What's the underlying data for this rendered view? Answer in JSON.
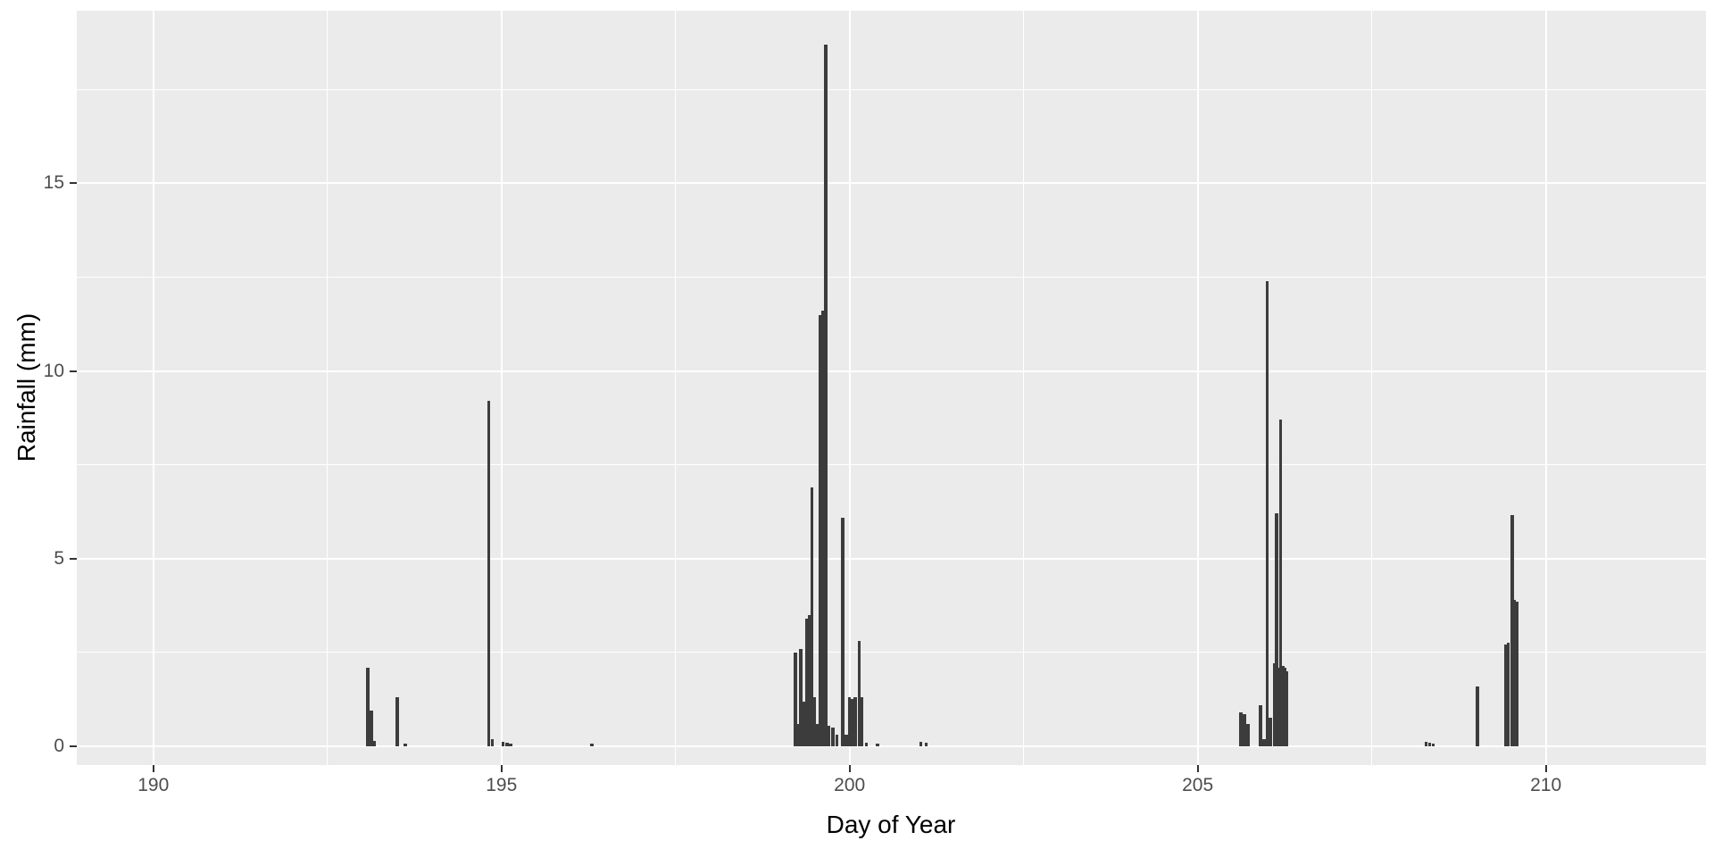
{
  "chart_data": {
    "type": "bar",
    "title": "",
    "xlabel": "Day of Year",
    "ylabel": "Rainfall (mm)",
    "xlim": [
      188.9,
      212.3
    ],
    "ylim": [
      -0.5,
      19.6
    ],
    "x_ticks": [
      190,
      195,
      200,
      205,
      210
    ],
    "y_ticks": [
      0,
      5,
      10,
      15
    ],
    "x_minor_ticks": [
      192.5,
      197.5,
      202.5,
      207.5
    ],
    "y_minor_ticks": [
      2.5,
      7.5,
      12.5,
      17.5
    ],
    "grid": true,
    "legend_position": "none",
    "panel_bg": "#EBEBEB",
    "grid_color": "#FFFFFF",
    "bar_color": "#3C3C3C",
    "tick_label_color": "#4D4D4D",
    "bars": [
      {
        "x": 193.08,
        "y": 2.1
      },
      {
        "x": 193.13,
        "y": 0.95
      },
      {
        "x": 193.17,
        "y": 0.15
      },
      {
        "x": 193.5,
        "y": 1.3
      },
      {
        "x": 193.62,
        "y": 0.08
      },
      {
        "x": 194.82,
        "y": 9.2
      },
      {
        "x": 194.87,
        "y": 0.2
      },
      {
        "x": 195.02,
        "y": 0.12
      },
      {
        "x": 195.08,
        "y": 0.1
      },
      {
        "x": 195.13,
        "y": 0.06
      },
      {
        "x": 196.3,
        "y": 0.08
      },
      {
        "x": 199.22,
        "y": 2.5
      },
      {
        "x": 199.26,
        "y": 0.6
      },
      {
        "x": 199.3,
        "y": 2.6
      },
      {
        "x": 199.34,
        "y": 1.2
      },
      {
        "x": 199.38,
        "y": 3.4
      },
      {
        "x": 199.42,
        "y": 3.5
      },
      {
        "x": 199.46,
        "y": 6.9
      },
      {
        "x": 199.5,
        "y": 1.3
      },
      {
        "x": 199.54,
        "y": 0.6
      },
      {
        "x": 199.58,
        "y": 11.5
      },
      {
        "x": 199.62,
        "y": 11.6
      },
      {
        "x": 199.66,
        "y": 18.7
      },
      {
        "x": 199.7,
        "y": 0.55
      },
      {
        "x": 199.76,
        "y": 0.5
      },
      {
        "x": 199.82,
        "y": 0.3
      },
      {
        "x": 199.9,
        "y": 6.1
      },
      {
        "x": 199.95,
        "y": 0.3
      },
      {
        "x": 200.0,
        "y": 1.3
      },
      {
        "x": 200.04,
        "y": 1.25
      },
      {
        "x": 200.08,
        "y": 1.3
      },
      {
        "x": 200.14,
        "y": 2.8
      },
      {
        "x": 200.18,
        "y": 1.3
      },
      {
        "x": 200.24,
        "y": 0.1
      },
      {
        "x": 200.4,
        "y": 0.06
      },
      {
        "x": 201.02,
        "y": 0.12
      },
      {
        "x": 201.1,
        "y": 0.1
      },
      {
        "x": 205.62,
        "y": 0.9
      },
      {
        "x": 205.67,
        "y": 0.85
      },
      {
        "x": 205.72,
        "y": 0.6
      },
      {
        "x": 205.9,
        "y": 1.1
      },
      {
        "x": 205.95,
        "y": 0.2
      },
      {
        "x": 206.0,
        "y": 12.4
      },
      {
        "x": 206.04,
        "y": 0.75
      },
      {
        "x": 206.1,
        "y": 2.2
      },
      {
        "x": 206.13,
        "y": 6.2
      },
      {
        "x": 206.16,
        "y": 2.1
      },
      {
        "x": 206.19,
        "y": 8.7
      },
      {
        "x": 206.22,
        "y": 2.15
      },
      {
        "x": 206.25,
        "y": 2.1
      },
      {
        "x": 206.28,
        "y": 2.0
      },
      {
        "x": 208.28,
        "y": 0.12
      },
      {
        "x": 208.33,
        "y": 0.1
      },
      {
        "x": 208.38,
        "y": 0.08
      },
      {
        "x": 209.02,
        "y": 1.6
      },
      {
        "x": 209.42,
        "y": 2.7
      },
      {
        "x": 209.46,
        "y": 2.75
      },
      {
        "x": 209.52,
        "y": 6.15
      },
      {
        "x": 209.55,
        "y": 3.9
      },
      {
        "x": 209.58,
        "y": 3.85
      }
    ]
  }
}
